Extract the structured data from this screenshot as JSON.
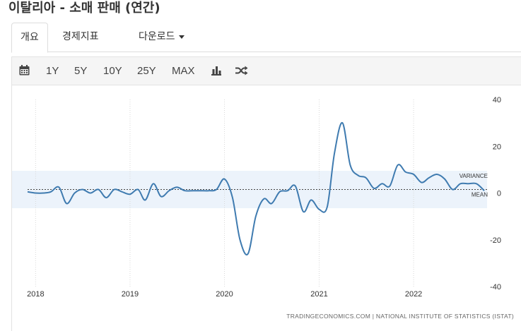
{
  "header": {
    "title": "이탈리아 - 소매 판매 (연간)"
  },
  "tabs": [
    {
      "label": "개요",
      "active": true
    },
    {
      "label": "경제지표",
      "active": false
    },
    {
      "label": "다운로드",
      "active": false,
      "dropdown": true
    }
  ],
  "toolbar": {
    "calendar_icon": "calendar-icon",
    "ranges": [
      "1Y",
      "5Y",
      "10Y",
      "25Y",
      "MAX"
    ],
    "bar_chart_icon": "bar-chart-icon",
    "shuffle_icon": "shuffle-icon"
  },
  "chart_data": {
    "type": "line",
    "title": "",
    "ylim": [
      -40,
      40
    ],
    "y_ticks": [
      "40",
      "20",
      "0",
      "-20",
      "-40"
    ],
    "x_ticks": [
      "2018",
      "2019",
      "2020",
      "2021",
      "2022"
    ],
    "x_range": [
      "2017-12-01",
      "2022-10-01"
    ],
    "grid": "vertical",
    "band": {
      "label": "VARIANCE",
      "range": [
        -6.5,
        9.5
      ]
    },
    "mean": {
      "label": "MEAN",
      "value": 1.5
    },
    "line_color": "#3f7bb0",
    "series": [
      {
        "points": [
          [
            "2017-12-01",
            0.5
          ],
          [
            "2018-01-01",
            0
          ],
          [
            "2018-02-01",
            0
          ],
          [
            "2018-03-01",
            0.5
          ],
          [
            "2018-04-01",
            2.5
          ],
          [
            "2018-05-01",
            -4.5
          ],
          [
            "2018-06-01",
            0
          ],
          [
            "2018-07-01",
            1.5
          ],
          [
            "2018-08-01",
            0
          ],
          [
            "2018-09-01",
            1.5
          ],
          [
            "2018-10-01",
            -2
          ],
          [
            "2018-11-01",
            1.5
          ],
          [
            "2018-12-01",
            0.5
          ],
          [
            "2019-01-01",
            -0.5
          ],
          [
            "2019-02-01",
            1.5
          ],
          [
            "2019-03-01",
            -3
          ],
          [
            "2019-04-01",
            4
          ],
          [
            "2019-05-01",
            -1.5
          ],
          [
            "2019-06-01",
            1
          ],
          [
            "2019-07-01",
            2.5
          ],
          [
            "2019-08-01",
            1
          ],
          [
            "2019-09-01",
            1
          ],
          [
            "2019-10-01",
            1
          ],
          [
            "2019-11-01",
            1
          ],
          [
            "2019-12-01",
            1.5
          ],
          [
            "2020-01-01",
            6
          ],
          [
            "2020-02-01",
            -2
          ],
          [
            "2020-03-01",
            -20
          ],
          [
            "2020-04-01",
            -26
          ],
          [
            "2020-05-01",
            -10
          ],
          [
            "2020-06-01",
            -2.5
          ],
          [
            "2020-07-01",
            -4.5
          ],
          [
            "2020-08-01",
            0.5
          ],
          [
            "2020-09-01",
            1
          ],
          [
            "2020-10-01",
            3
          ],
          [
            "2020-11-01",
            -8
          ],
          [
            "2020-12-01",
            -3
          ],
          [
            "2021-01-01",
            -7
          ],
          [
            "2021-02-01",
            -6
          ],
          [
            "2021-03-01",
            17
          ],
          [
            "2021-04-01",
            30
          ],
          [
            "2021-05-01",
            12
          ],
          [
            "2021-06-01",
            7.5
          ],
          [
            "2021-07-01",
            6.5
          ],
          [
            "2021-08-01",
            2
          ],
          [
            "2021-09-01",
            4
          ],
          [
            "2021-10-01",
            3
          ],
          [
            "2021-11-01",
            12
          ],
          [
            "2021-12-01",
            9
          ],
          [
            "2022-01-01",
            8
          ],
          [
            "2022-02-01",
            4.5
          ],
          [
            "2022-03-01",
            6.5
          ],
          [
            "2022-04-01",
            8
          ],
          [
            "2022-05-01",
            6
          ],
          [
            "2022-06-01",
            1.5
          ],
          [
            "2022-07-01",
            4
          ],
          [
            "2022-08-01",
            4
          ],
          [
            "2022-09-01",
            4
          ],
          [
            "2022-10-01",
            1
          ]
        ]
      }
    ],
    "source": "TRADINGECONOMICS.COM  |  NATIONAL INSTITUTE OF STATISTICS (ISTAT)"
  }
}
